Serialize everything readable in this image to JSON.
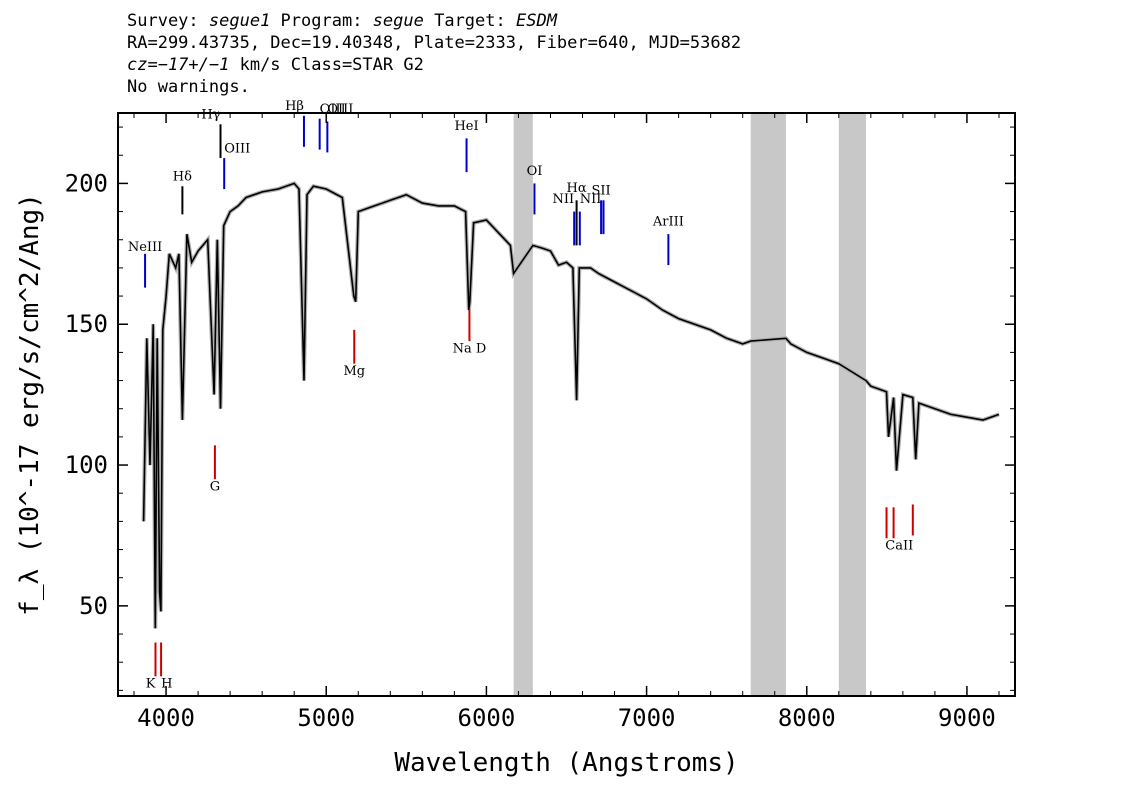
{
  "header": {
    "line1": {
      "survey_label": "Survey: ",
      "survey": "segue1",
      "program_label": " Program: ",
      "program": "segue",
      "target_label": " Target: ",
      "target": "ESDM"
    },
    "line2": "RA=299.43735, Dec=19.40348, Plate=2333, Fiber=640, MJD=53682",
    "line3": {
      "cz": "cz=−17+/−1",
      "rest": " km/s Class=STAR G2"
    },
    "line4": "No warnings."
  },
  "chart_data": {
    "type": "line",
    "xlabel": "Wavelength (Angstroms)",
    "ylabel": "f_λ (10^-17 erg/s/cm^2/Ang)",
    "xlim": [
      3700,
      9300
    ],
    "ylim": [
      18,
      225
    ],
    "x_ticks": [
      4000,
      5000,
      6000,
      7000,
      8000,
      9000
    ],
    "y_ticks": [
      50,
      100,
      150,
      200
    ],
    "grid": false,
    "masked_regions": [
      [
        6170,
        6290
      ],
      [
        7650,
        7870
      ],
      [
        8200,
        8370
      ]
    ],
    "series": [
      {
        "x": [
          3860,
          3880,
          3900,
          3920,
          3933,
          3945,
          3960,
          3968,
          3980,
          4000,
          4020,
          4060,
          4080,
          4102,
          4130,
          4160,
          4200,
          4260,
          4300,
          4320,
          4340,
          4360,
          4400,
          4450,
          4500,
          4600,
          4700,
          4800,
          4830,
          4861,
          4880,
          4920,
          5000,
          5100,
          5172,
          5184,
          5200,
          5300,
          5400,
          5500,
          5600,
          5700,
          5800,
          5870,
          5890,
          5896,
          5920,
          6000,
          6100,
          6150,
          6170,
          6290,
          6350,
          6400,
          6450,
          6500,
          6540,
          6563,
          6580,
          6650,
          6700,
          6800,
          6900,
          7000,
          7100,
          7200,
          7300,
          7400,
          7500,
          7600,
          7650,
          7870,
          7900,
          8000,
          8100,
          8200,
          8370,
          8400,
          8450,
          8498,
          8510,
          8542,
          8560,
          8600,
          8662,
          8680,
          8700,
          8800,
          8900,
          9000,
          9100,
          9200
        ],
        "y": [
          80,
          145,
          100,
          150,
          42,
          145,
          55,
          48,
          148,
          160,
          175,
          170,
          175,
          116,
          182,
          172,
          176,
          180,
          125,
          180,
          120,
          185,
          190,
          192,
          195,
          197,
          198,
          200,
          198,
          130,
          196,
          199,
          198,
          195,
          160,
          158,
          190,
          192,
          194,
          196,
          193,
          192,
          192,
          190,
          155,
          158,
          186,
          187,
          181,
          178,
          168,
          178,
          177,
          176,
          171,
          172,
          170,
          123,
          170,
          170,
          168,
          165,
          162,
          159,
          155,
          152,
          150,
          148,
          145,
          143,
          144,
          145,
          143,
          140,
          138,
          136,
          130,
          128,
          127,
          126,
          110,
          124,
          98,
          125,
          124,
          102,
          122,
          120,
          118,
          117,
          116,
          118
        ],
        "color": "#000000"
      }
    ],
    "lines": [
      {
        "label": "NeIII",
        "wave": 3869,
        "top": 175,
        "bottom": 163,
        "label_y": 176,
        "color": "#0000cc",
        "anchor": "middle"
      },
      {
        "label": "Hδ",
        "wave": 4102,
        "top": 199,
        "bottom": 189,
        "label_y": 201,
        "color": "#000000",
        "anchor": "middle"
      },
      {
        "label": "Hγ",
        "wave": 4340,
        "top": 221,
        "bottom": 209,
        "label_y": 223,
        "color": "#000000",
        "anchor": "end"
      },
      {
        "label": "OIII",
        "wave": 4363,
        "top": 209,
        "bottom": 198,
        "label_y": 211,
        "color": "#0000cc",
        "anchor": "start"
      },
      {
        "label": "Hβ",
        "wave": 4861,
        "top": 224,
        "bottom": 213,
        "label_y": 226,
        "color": "#0000cc",
        "anchor": "end"
      },
      {
        "label": "OIII",
        "wave": 4959,
        "top": 223,
        "bottom": 212,
        "label_y": 225,
        "color": "#0000cc",
        "anchor": "start"
      },
      {
        "label": "OIII",
        "wave": 5007,
        "top": 222,
        "bottom": 211,
        "label_y": 225,
        "color": "#0000cc",
        "anchor": "start"
      },
      {
        "label": "HeI",
        "wave": 5876,
        "top": 216,
        "bottom": 204,
        "label_y": 219,
        "color": "#0000cc",
        "anchor": "middle"
      },
      {
        "label": "OI",
        "wave": 6300,
        "top": 200,
        "bottom": 189,
        "label_y": 203,
        "color": "#0000cc",
        "anchor": "middle"
      },
      {
        "label": "NII",
        "wave": 6548,
        "top": 190,
        "bottom": 178,
        "label_y": 193,
        "color": "#0000cc",
        "anchor": "end"
      },
      {
        "label": "Hα",
        "wave": 6563,
        "top": 194,
        "bottom": 178,
        "label_y": 197,
        "color": "#000000",
        "anchor": "middle"
      },
      {
        "label": "NII",
        "wave": 6583,
        "top": 190,
        "bottom": 178,
        "label_y": 193,
        "color": "#0000cc",
        "anchor": "start"
      },
      {
        "label": "SII",
        "wave": 6716,
        "top": 194,
        "bottom": 182,
        "label_y": 196,
        "color": "#0000cc",
        "anchor": "middle"
      },
      {
        "label": "",
        "wave": 6731,
        "top": 194,
        "bottom": 182,
        "label_y": 196,
        "color": "#0000cc",
        "anchor": "middle"
      },
      {
        "label": "ArIII",
        "wave": 7136,
        "top": 182,
        "bottom": 171,
        "label_y": 185,
        "color": "#0000cc",
        "anchor": "middle"
      },
      {
        "label": "Mg",
        "wave": 5175,
        "top": 148,
        "bottom": 136,
        "label_y": 132,
        "color": "#cc0000",
        "anchor": "middle",
        "below": true
      },
      {
        "label": "Na D",
        "wave": 5894,
        "top": 155,
        "bottom": 144,
        "label_y": 140,
        "color": "#cc0000",
        "anchor": "middle",
        "below": true
      },
      {
        "label": "G",
        "wave": 4305,
        "top": 107,
        "bottom": 95,
        "label_y": 91,
        "color": "#cc0000",
        "anchor": "middle",
        "below": true
      },
      {
        "label": "CaII",
        "wave": 8498,
        "top": 85,
        "bottom": 74,
        "label_y": 70,
        "color": "#cc0000",
        "anchor": "start",
        "below": true,
        "label_wave": 8490
      },
      {
        "label": "",
        "wave": 8542,
        "top": 85,
        "bottom": 74,
        "label_y": 70,
        "color": "#cc0000",
        "anchor": "middle",
        "below": true
      },
      {
        "label": "",
        "wave": 8662,
        "top": 86,
        "bottom": 75,
        "label_y": 70,
        "color": "#cc0000",
        "anchor": "middle",
        "below": true
      },
      {
        "label": "K",
        "wave": 3934,
        "top": 37,
        "bottom": 25,
        "label_y": 21,
        "color": "#cc0000",
        "anchor": "end",
        "below": true
      },
      {
        "label": "H",
        "wave": 3969,
        "top": 37,
        "bottom": 25,
        "label_y": 21,
        "color": "#cc0000",
        "anchor": "start",
        "below": true
      }
    ]
  }
}
